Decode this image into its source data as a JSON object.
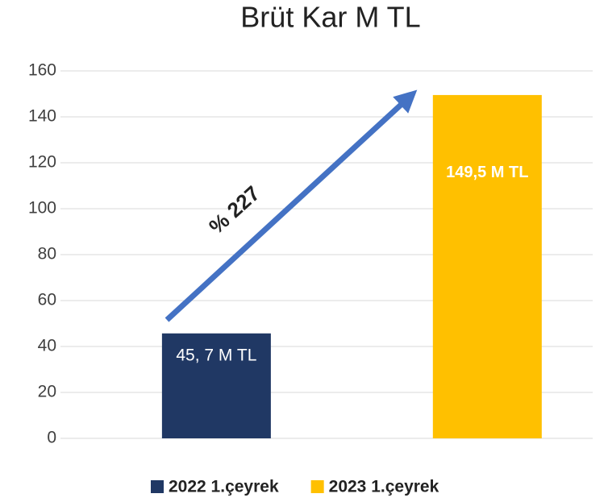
{
  "chart_data": {
    "type": "bar",
    "title": "Brüt Kar M TL",
    "categories": [
      null
    ],
    "series": [
      {
        "name": "2022 1.çeyrek",
        "color": "#203864",
        "values": [
          45.7
        ],
        "value_labels": [
          "45, 7 M TL"
        ]
      },
      {
        "name": "2023 1.çeyrek",
        "color": "#ffc000",
        "values": [
          149.5
        ],
        "value_labels": [
          "149,5 M TL"
        ]
      }
    ],
    "annotations": [
      "% 227"
    ],
    "ylim": [
      0,
      160
    ],
    "yticks": [
      0,
      20,
      40,
      60,
      80,
      100,
      120,
      140,
      160
    ],
    "grid": true,
    "legend": "bottom"
  }
}
